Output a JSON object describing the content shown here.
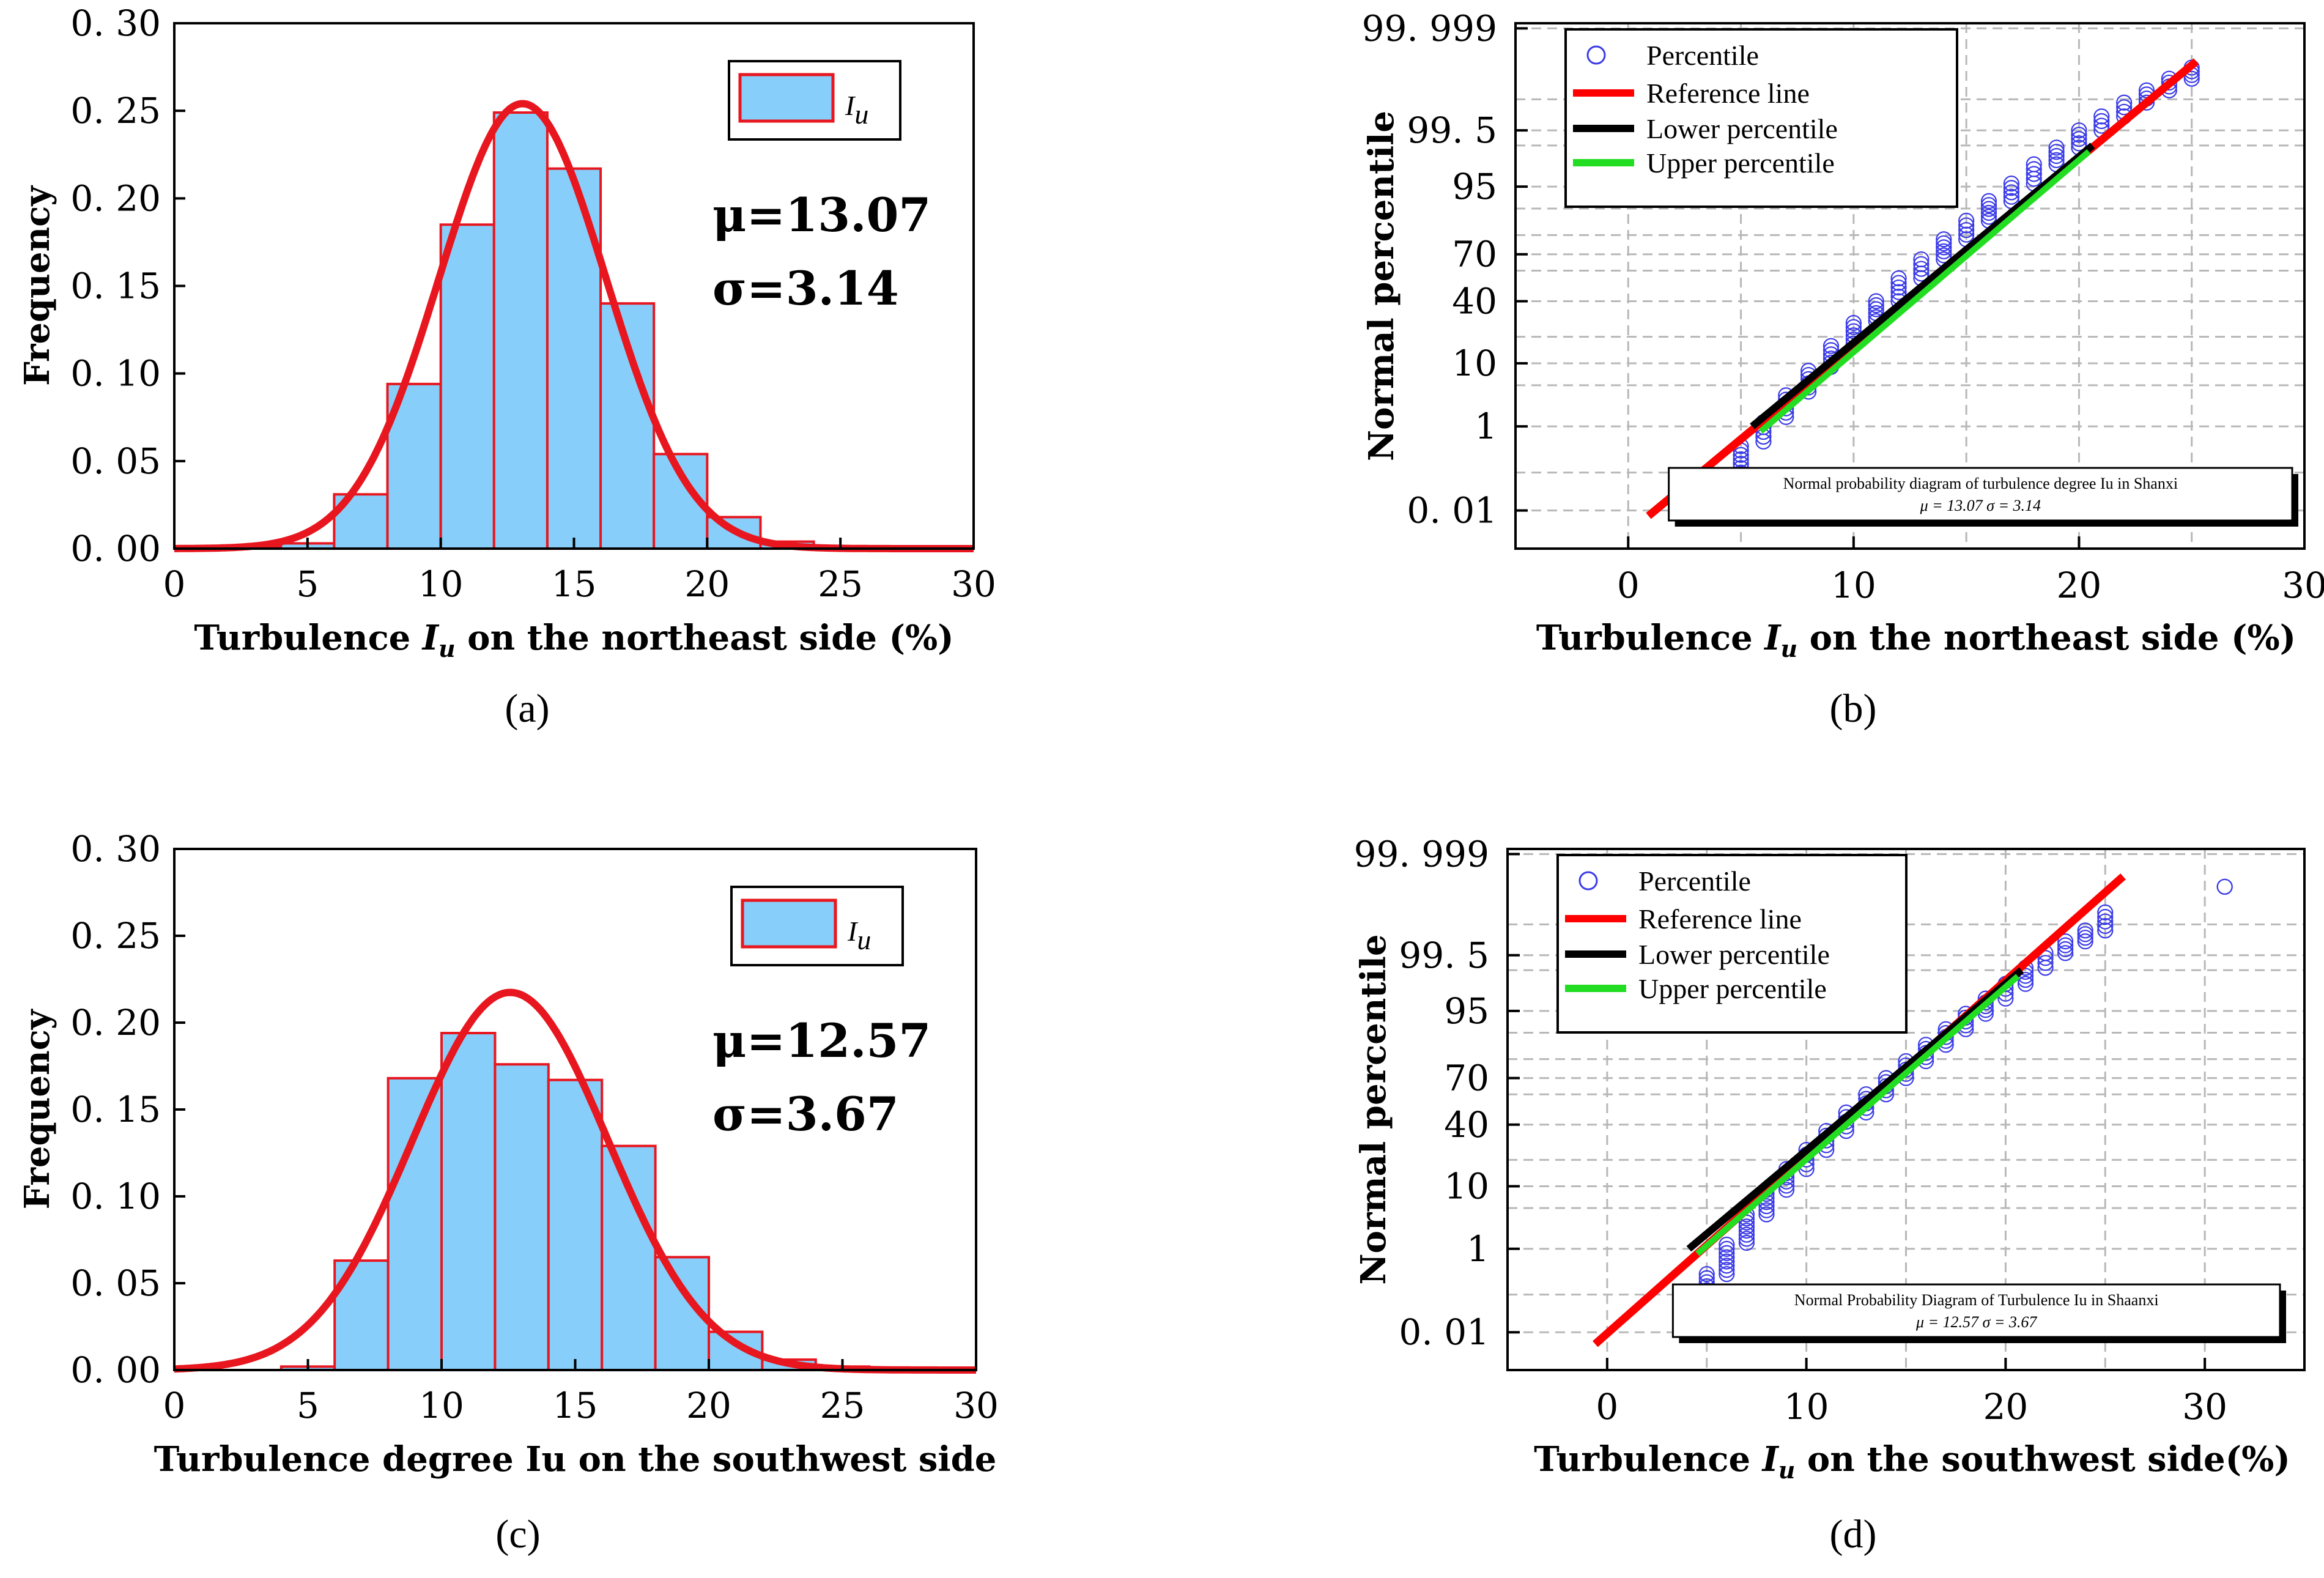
{
  "panel_labels": [
    "(a)",
    "(b)",
    "(c)",
    "(d)"
  ],
  "chart_data": [
    {
      "type": "bar",
      "panel": "a",
      "xlabel": "Turbulence I_u on the northeast side (%)",
      "ylabel": "Frequency",
      "xlim": [
        0,
        30
      ],
      "ylim": [
        0,
        0.3
      ],
      "xticks": [
        0,
        5,
        10,
        15,
        20,
        25,
        30
      ],
      "yticks": [
        "0.00",
        "0.05",
        "0.10",
        "0.15",
        "0.20",
        "0.25",
        "0.30"
      ],
      "bin_edges": [
        0,
        2,
        4,
        6,
        8,
        10,
        12,
        14,
        16,
        18,
        20,
        22,
        24,
        26,
        28,
        30
      ],
      "values": [
        0.001,
        0.001,
        0.003,
        0.031,
        0.094,
        0.185,
        0.249,
        0.217,
        0.14,
        0.054,
        0.018,
        0.004,
        0.001,
        0.0,
        0.0
      ],
      "fit": {
        "type": "normal",
        "mu": 13.07,
        "sigma": 3.14
      },
      "legend": [
        "Iu"
      ],
      "annotation": {
        "mu": "μ=13.07",
        "sigma": "σ=3.14"
      },
      "colors": {
        "bar_fill": "#87CEFA",
        "bar_edge": "#E8161E",
        "curve": "#E8161E"
      }
    },
    {
      "type": "scatter",
      "panel": "b",
      "xlabel": "Turbulence I_u on the northeast side (%)",
      "ylabel": "Normal percentile",
      "xlim": [
        -5,
        30
      ],
      "ylim_percentile": [
        0.001,
        99.999
      ],
      "xticks": [
        0,
        10,
        20,
        30
      ],
      "yticks": [
        "0.01",
        "1",
        "10",
        "40",
        "70",
        "95",
        "99.5",
        "99.999"
      ],
      "legend": [
        "Percentile",
        "Reference line",
        "Lower percentile",
        "Upper percentile"
      ],
      "caption": [
        "Normal probability diagram of turbulence degree Iu in Shanxi",
        "μ = 13.07   σ = 3.14"
      ],
      "reference_line": {
        "x": [
          0.9,
          25.2
        ],
        "percentile": [
          0.007,
          99.99
        ]
      },
      "lower_percentile_line": {
        "x": [
          5.5,
          13.07
        ],
        "percentile": [
          1.0,
          50.0
        ]
      },
      "upper_percentile_line": {
        "x": [
          13.07,
          20.6
        ],
        "percentile": [
          50.0,
          99.0
        ]
      },
      "points": {
        "x": [
          4,
          5,
          6,
          7,
          8,
          9,
          10,
          11,
          12,
          13,
          14,
          15,
          16,
          17,
          18,
          19,
          20,
          21,
          22,
          23,
          24,
          25
        ],
        "percentile_range": [
          [
            0.01,
            0.06
          ],
          [
            0.1,
            0.4
          ],
          [
            0.5,
            1.2
          ],
          [
            1.5,
            3.5
          ],
          [
            4,
            8
          ],
          [
            9,
            16
          ],
          [
            17,
            27
          ],
          [
            28,
            40
          ],
          [
            40,
            55
          ],
          [
            55,
            67
          ],
          [
            67,
            78
          ],
          [
            78,
            86
          ],
          [
            86,
            92
          ],
          [
            92,
            95.5
          ],
          [
            95.5,
            97.8
          ],
          [
            97.8,
            98.9
          ],
          [
            98.9,
            99.5
          ],
          [
            99.5,
            99.75
          ],
          [
            99.75,
            99.88
          ],
          [
            99.88,
            99.94
          ],
          [
            99.94,
            99.97
          ],
          [
            99.97,
            99.985
          ]
        ]
      },
      "colors": {
        "points": "#3B3BE8",
        "reference": "#FF0000",
        "lower": "#000000",
        "upper": "#22DD22"
      }
    },
    {
      "type": "bar",
      "panel": "c",
      "xlabel": "Turbulence degree Iu on the southwest side",
      "ylabel": "Frequency",
      "xlim": [
        0,
        30
      ],
      "ylim": [
        0,
        0.3
      ],
      "xticks": [
        0,
        5,
        10,
        15,
        20,
        25,
        30
      ],
      "yticks": [
        "0.00",
        "0.05",
        "0.10",
        "0.15",
        "0.20",
        "0.25",
        "0.30"
      ],
      "bin_edges": [
        0,
        2,
        4,
        6,
        8,
        10,
        12,
        14,
        16,
        18,
        20,
        22,
        24,
        26,
        28,
        30
      ],
      "values": [
        0.0,
        0.0,
        0.002,
        0.063,
        0.168,
        0.194,
        0.176,
        0.167,
        0.129,
        0.065,
        0.022,
        0.006,
        0.002,
        0.001,
        0.001
      ],
      "fit": {
        "type": "normal",
        "mu": 12.57,
        "sigma": 3.67
      },
      "legend": [
        "Iu"
      ],
      "annotation": {
        "mu": "μ=12.57",
        "sigma": "σ=3.67"
      },
      "colors": {
        "bar_fill": "#87CEFA",
        "bar_edge": "#E8161E",
        "curve": "#E8161E"
      }
    },
    {
      "type": "scatter",
      "panel": "d",
      "xlabel": "Turbulence I_u on the southwest side(%)",
      "ylabel": "Normal percentile",
      "xlim": [
        -5,
        35
      ],
      "ylim_percentile": [
        0.001,
        99.999
      ],
      "xticks": [
        0,
        10,
        20,
        30
      ],
      "yticks": [
        "0.01",
        "1",
        "10",
        "40",
        "70",
        "95",
        "99.5",
        "99.999"
      ],
      "legend": [
        "Percentile",
        "Reference line",
        "Lower percentile",
        "Upper percentile"
      ],
      "caption": [
        "Normal Probability Diagram of Turbulence Iu in Shaanxi",
        "μ = 12.57   σ = 3.67"
      ],
      "reference_line": {
        "x": [
          -0.6,
          25.9
        ],
        "percentile": [
          0.0045,
          99.995
        ]
      },
      "lower_percentile_line": {
        "x": [
          4.1,
          12.57
        ],
        "percentile": [
          1.0,
          50.0
        ]
      },
      "upper_percentile_line": {
        "x": [
          12.57,
          20.8
        ],
        "percentile": [
          50.0,
          99.0
        ]
      },
      "points": {
        "x": [
          5,
          6,
          7,
          8,
          9,
          10,
          11,
          12,
          13,
          14,
          15,
          16,
          17,
          18,
          19,
          20,
          21,
          22,
          23,
          24,
          25,
          31
        ],
        "percentile_range": [
          [
            0.05,
            0.3
          ],
          [
            0.3,
            1.2
          ],
          [
            1.3,
            4
          ],
          [
            4,
            9
          ],
          [
            9,
            16
          ],
          [
            16,
            25
          ],
          [
            25,
            36
          ],
          [
            36,
            48
          ],
          [
            48,
            60
          ],
          [
            60,
            70
          ],
          [
            70,
            79
          ],
          [
            79,
            86
          ],
          [
            86,
            91
          ],
          [
            91,
            94.5
          ],
          [
            94.5,
            96.8
          ],
          [
            96.8,
            98.2
          ],
          [
            98.2,
            99.1
          ],
          [
            99.1,
            99.55
          ],
          [
            99.55,
            99.75
          ],
          [
            99.75,
            99.86
          ],
          [
            99.86,
            99.95
          ],
          [
            99.99,
            99.99
          ]
        ]
      },
      "colors": {
        "points": "#3B3BE8",
        "reference": "#FF0000",
        "lower": "#000000",
        "upper": "#22DD22"
      }
    }
  ]
}
